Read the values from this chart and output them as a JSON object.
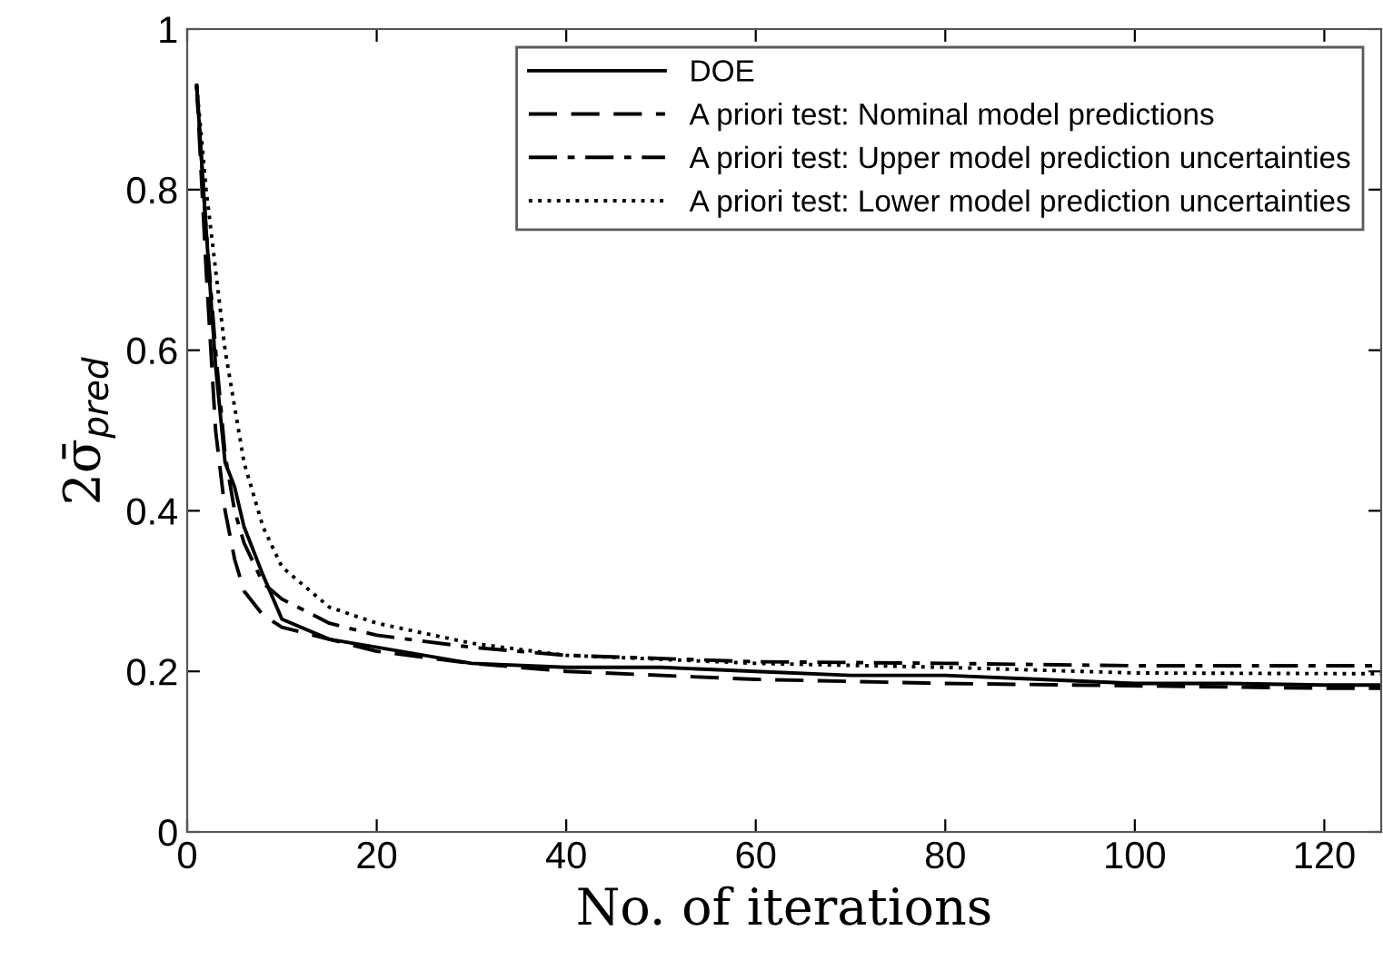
{
  "chart_data": {
    "type": "line",
    "xlabel": "No. of iterations",
    "ylabel": "2σ̄$_{pred}$",
    "xlim": [
      0,
      126
    ],
    "xticks": [
      0,
      20,
      40,
      60,
      80,
      100,
      120
    ],
    "ylim": [
      0,
      1
    ],
    "yticks": [
      0,
      0.2,
      0.4,
      0.6,
      0.8,
      1
    ],
    "grid": false,
    "legend": "top right",
    "series": [
      {
        "name": "DOE",
        "color": "#000000",
        "line_style": "solid",
        "x": [
          1,
          2,
          3,
          4,
          5,
          6,
          8,
          10,
          15,
          20,
          30,
          40,
          50,
          60,
          70,
          80,
          90,
          100,
          110,
          120,
          126
        ],
        "values": [
          0.93,
          0.75,
          0.58,
          0.46,
          0.43,
          0.38,
          0.32,
          0.265,
          0.24,
          0.23,
          0.21,
          0.205,
          0.205,
          0.2,
          0.195,
          0.195,
          0.19,
          0.185,
          0.185,
          0.183,
          0.183
        ]
      },
      {
        "name": "A priori test: Nominal model predictions",
        "color": "#000000",
        "line_style": "dashed",
        "x": [
          1,
          2,
          3,
          4,
          5,
          6,
          8,
          10,
          15,
          20,
          30,
          40,
          60,
          80,
          100,
          120,
          126
        ],
        "values": [
          0.93,
          0.7,
          0.5,
          0.4,
          0.34,
          0.3,
          0.27,
          0.255,
          0.24,
          0.225,
          0.21,
          0.2,
          0.19,
          0.185,
          0.182,
          0.179,
          0.179
        ]
      },
      {
        "name": "A priori test: Upper model prediction uncertainties",
        "color": "#000000",
        "line_style": "dashdot",
        "x": [
          1,
          2,
          3,
          4,
          5,
          6,
          8,
          10,
          15,
          20,
          30,
          40,
          60,
          80,
          100,
          126
        ],
        "values": [
          0.93,
          0.75,
          0.6,
          0.47,
          0.4,
          0.36,
          0.31,
          0.29,
          0.26,
          0.245,
          0.23,
          0.22,
          0.212,
          0.21,
          0.207,
          0.207
        ]
      },
      {
        "name": "A priori test: Lower model prediction uncertainties",
        "color": "#000000",
        "line_style": "dotted",
        "x": [
          1,
          2,
          3,
          4,
          5,
          6,
          8,
          10,
          15,
          20,
          30,
          40,
          60,
          80,
          100,
          126
        ],
        "values": [
          0.93,
          0.8,
          0.7,
          0.6,
          0.53,
          0.46,
          0.38,
          0.33,
          0.28,
          0.26,
          0.235,
          0.22,
          0.21,
          0.205,
          0.198,
          0.197
        ]
      }
    ]
  }
}
